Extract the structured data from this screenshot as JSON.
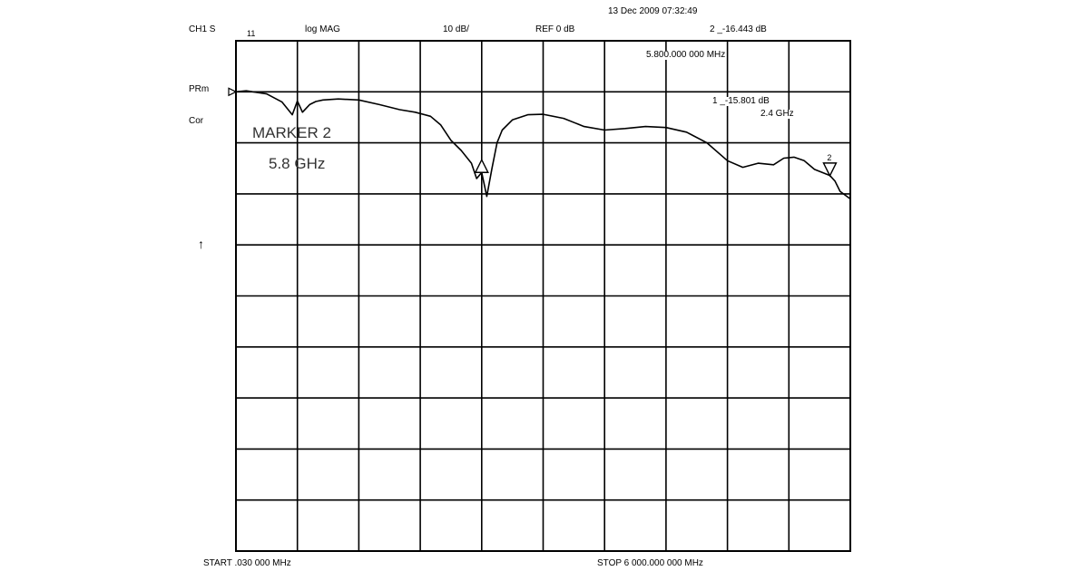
{
  "header": {
    "datetime": "13 Dec 2009  07:32:49",
    "channel": "CH1 S",
    "param": "11",
    "format": "log MAG",
    "scale": "10 dB/",
    "reference": "REF 0 dB",
    "marker2_readout": "2  _-16.443 dB",
    "marker2_freq": "5.800.000 000 MHz",
    "marker1_readout": "1  _-15.801 dB",
    "marker1_freq": "2.4 GHz"
  },
  "side": {
    "prm": "PRm",
    "cor": "Cor",
    "icon": "↑"
  },
  "annotation": {
    "line1": "MARKER 2",
    "line2": "5.8 GHz"
  },
  "footer": {
    "start": "START   .030 000 MHz",
    "stop": "STOP 6 000.000 000 MHz"
  },
  "chart_data": {
    "type": "line",
    "title": "",
    "xlabel": "",
    "ylabel": "",
    "xlim": [
      3e-05,
      6.0
    ],
    "ylim": [
      -90,
      10
    ],
    "divisions": {
      "x": 10,
      "y": 10
    },
    "grid": true,
    "reference_level_db": 0,
    "series": [
      {
        "x": [
          3e-05,
          0.1,
          0.3,
          0.45,
          0.55,
          0.6,
          0.65,
          0.72,
          0.78,
          0.85,
          1.0,
          1.2,
          1.4,
          1.6,
          1.75,
          1.9,
          2.0,
          2.1,
          2.2,
          2.3,
          2.35,
          2.4,
          2.45,
          2.5,
          2.55,
          2.6,
          2.7,
          2.85,
          3.0,
          3.2,
          3.4,
          3.6,
          3.8,
          4.0,
          4.2,
          4.4,
          4.6,
          4.8,
          4.95,
          5.1,
          5.25,
          5.35,
          5.45,
          5.55,
          5.65,
          5.75,
          5.8,
          5.85,
          5.9,
          6.0
        ],
        "y": [
          0.0,
          0.2,
          -0.4,
          -2.0,
          -4.5,
          -1.8,
          -4.0,
          -2.5,
          -1.9,
          -1.6,
          -1.4,
          -1.6,
          -2.5,
          -3.5,
          -4.0,
          -4.8,
          -6.5,
          -9.5,
          -11.5,
          -14.0,
          -17.0,
          -15.8,
          -20.5,
          -15.0,
          -10.0,
          -7.5,
          -5.5,
          -4.5,
          -4.4,
          -5.2,
          -6.8,
          -7.5,
          -7.2,
          -6.8,
          -7.0,
          -7.9,
          -10.0,
          -13.5,
          -14.8,
          -14.0,
          -14.3,
          -13.0,
          -12.8,
          -13.5,
          -15.2,
          -16.0,
          -16.4,
          -17.5,
          -19.5,
          -21.0
        ]
      }
    ],
    "markers": [
      {
        "id": "1",
        "x": 2.4,
        "y": -15.801,
        "label": "1"
      },
      {
        "id": "2",
        "x": 5.8,
        "y": -16.443,
        "label": "2"
      }
    ]
  }
}
